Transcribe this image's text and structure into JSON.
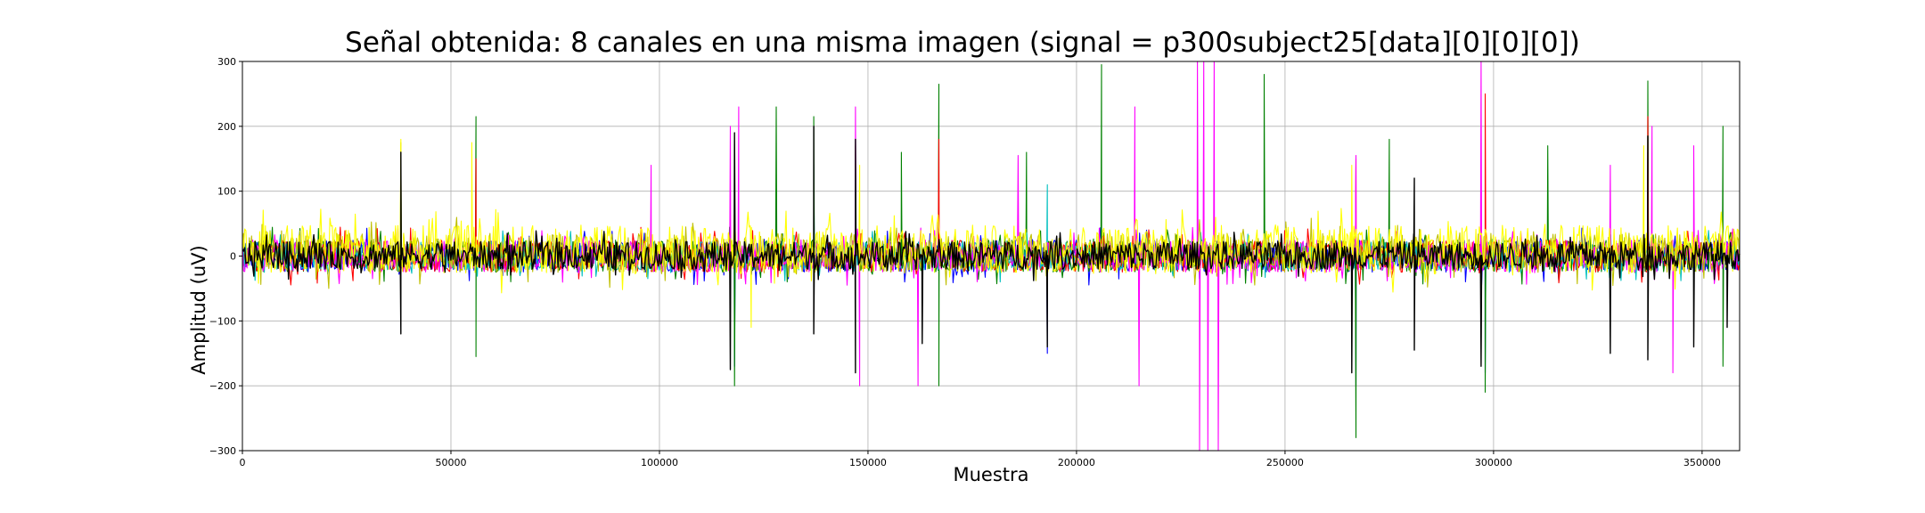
{
  "chart_data": {
    "type": "line",
    "title": "Señal obtenida: 8 canales en una misma imagen (signal = p300subject25[data][0][0][0])",
    "xlabel": "Muestra",
    "ylabel": "Amplitud (uV)",
    "xlim": [
      0,
      359000
    ],
    "ylim": [
      -300,
      300
    ],
    "grid": true,
    "x_ticks": [
      0,
      50000,
      100000,
      150000,
      200000,
      250000,
      300000,
      350000
    ],
    "y_ticks": [
      -300,
      -200,
      -100,
      0,
      100,
      200,
      300
    ],
    "x_tick_labels": [
      "0",
      "50000",
      "100000",
      "150000",
      "200000",
      "250000",
      "300000",
      "350000"
    ],
    "y_tick_labels": [
      "−300",
      "−200",
      "−100",
      "0",
      "100",
      "200",
      "300"
    ],
    "series_colors": [
      "#0000ff",
      "#008000",
      "#ff0000",
      "#00bfbf",
      "#ff00ff",
      "#bfbf00",
      "#ffff00",
      "#000000"
    ],
    "series": [
      {
        "color": "#0000ff",
        "band": [
          -45,
          45
        ],
        "spikes": [
          [
            118000,
            -170
          ],
          [
            137000,
            140
          ],
          [
            147000,
            150
          ],
          [
            193000,
            -150
          ],
          [
            267000,
            -200
          ],
          [
            298000,
            -180
          ],
          [
            337000,
            160
          ]
        ]
      },
      {
        "color": "#008000",
        "band": [
          -45,
          45
        ],
        "spikes": [
          [
            38000,
            150
          ],
          [
            56000,
            215
          ],
          [
            56000,
            -155
          ],
          [
            118000,
            -200
          ],
          [
            128000,
            230
          ],
          [
            137000,
            215
          ],
          [
            158000,
            160
          ],
          [
            167000,
            265
          ],
          [
            167000,
            -200
          ],
          [
            188000,
            160
          ],
          [
            206000,
            295
          ],
          [
            245000,
            280
          ],
          [
            267000,
            -280
          ],
          [
            275000,
            180
          ],
          [
            298000,
            -210
          ],
          [
            313000,
            170
          ],
          [
            337000,
            270
          ],
          [
            355000,
            200
          ],
          [
            355000,
            -170
          ]
        ]
      },
      {
        "color": "#ff0000",
        "band": [
          -45,
          45
        ],
        "spikes": [
          [
            56000,
            150
          ],
          [
            147000,
            170
          ],
          [
            167000,
            180
          ],
          [
            267000,
            150
          ],
          [
            298000,
            250
          ],
          [
            337000,
            215
          ]
        ]
      },
      {
        "color": "#00bfbf",
        "band": [
          -40,
          40
        ],
        "spikes": [
          [
            118000,
            130
          ],
          [
            147000,
            120
          ],
          [
            193000,
            110
          ]
        ]
      },
      {
        "color": "#ff00ff",
        "band": [
          -45,
          45
        ],
        "spikes": [
          [
            98000,
            140
          ],
          [
            117000,
            200
          ],
          [
            119000,
            230
          ],
          [
            147000,
            230
          ],
          [
            148000,
            -200
          ],
          [
            162000,
            -200
          ],
          [
            186000,
            155
          ],
          [
            214000,
            230
          ],
          [
            215000,
            -200
          ],
          [
            229000,
            300
          ],
          [
            229500,
            -300
          ],
          [
            230500,
            300
          ],
          [
            231500,
            -300
          ],
          [
            233000,
            300
          ],
          [
            234000,
            -300
          ],
          [
            267000,
            155
          ],
          [
            297000,
            300
          ],
          [
            328000,
            140
          ],
          [
            338000,
            200
          ],
          [
            343000,
            -180
          ],
          [
            348000,
            170
          ]
        ]
      },
      {
        "color": "#bfbf00",
        "band": [
          -50,
          60
        ],
        "spikes": [
          [
            38000,
            175
          ]
        ]
      },
      {
        "color": "#ffff00",
        "band": [
          -58,
          78
        ],
        "spikes": [
          [
            38000,
            180
          ],
          [
            55000,
            175
          ],
          [
            122000,
            -110
          ],
          [
            148000,
            140
          ],
          [
            266000,
            140
          ],
          [
            336000,
            170
          ]
        ]
      },
      {
        "color": "#000000",
        "band": [
          -38,
          40
        ],
        "spikes": [
          [
            38000,
            -120
          ],
          [
            38000,
            160
          ],
          [
            117000,
            -175
          ],
          [
            118000,
            190
          ],
          [
            137000,
            200
          ],
          [
            137000,
            -120
          ],
          [
            147000,
            -180
          ],
          [
            147000,
            180
          ],
          [
            163000,
            -135
          ],
          [
            193000,
            -140
          ],
          [
            266000,
            -180
          ],
          [
            281000,
            120
          ],
          [
            281000,
            -145
          ],
          [
            297000,
            -170
          ],
          [
            328000,
            -150
          ],
          [
            337000,
            185
          ],
          [
            337000,
            -160
          ],
          [
            348000,
            -140
          ],
          [
            356000,
            -110
          ]
        ]
      }
    ]
  }
}
